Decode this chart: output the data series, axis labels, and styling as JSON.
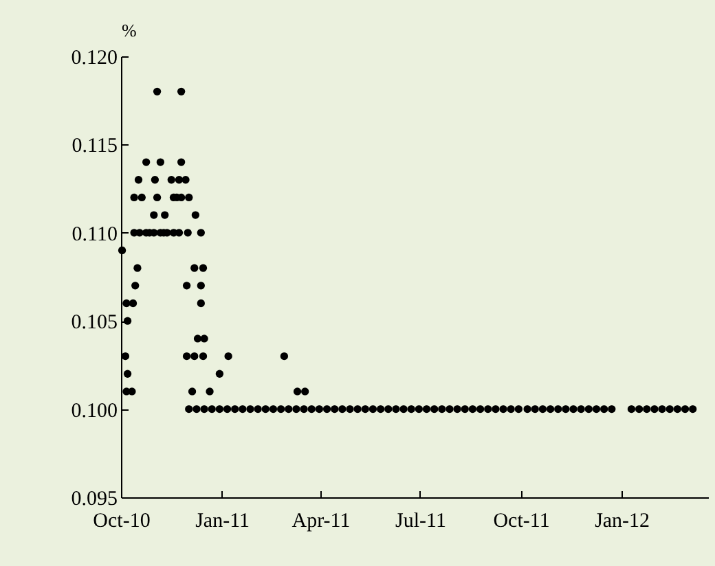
{
  "chart_data": {
    "type": "scatter",
    "ylabel": "%",
    "marker": "circle",
    "xlim": [
      "2010-10-01",
      "2012-03-20"
    ],
    "xticks": [
      {
        "value": "2010-10-01",
        "label": "Oct-10"
      },
      {
        "value": "2011-01-01",
        "label": "Jan-11"
      },
      {
        "value": "2011-04-01",
        "label": "Apr-11"
      },
      {
        "value": "2011-07-01",
        "label": "Jul-11"
      },
      {
        "value": "2011-10-01",
        "label": "Oct-11"
      },
      {
        "value": "2012-01-01",
        "label": "Jan-12"
      }
    ],
    "ylim": [
      0.095,
      0.12
    ],
    "yticks": [
      {
        "value": 0.095,
        "label": "0.095"
      },
      {
        "value": 0.1,
        "label": "0.100"
      },
      {
        "value": 0.105,
        "label": "0.105"
      },
      {
        "value": 0.11,
        "label": "0.110"
      },
      {
        "value": 0.115,
        "label": "0.115"
      },
      {
        "value": 0.12,
        "label": "0.120"
      }
    ],
    "series": [
      {
        "color": "#000000",
        "x": [
          "2010-10-02",
          "2010-10-05",
          "2010-10-06",
          "2010-10-06",
          "2010-10-07",
          "2010-10-07",
          "2010-10-11",
          "2010-10-12",
          "2010-10-13",
          "2010-10-13",
          "2010-10-14",
          "2010-10-16",
          "2010-10-17",
          "2010-10-18",
          "2010-10-20",
          "2010-10-24",
          "2010-10-24",
          "2010-10-27",
          "2010-10-31",
          "2010-10-31",
          "2010-11-01",
          "2010-11-03",
          "2010-11-03",
          "2010-11-06",
          "2010-11-06",
          "2010-11-09",
          "2010-11-10",
          "2010-11-12",
          "2010-11-16",
          "2010-11-18",
          "2010-11-18",
          "2010-11-21",
          "2010-11-23",
          "2010-11-23",
          "2010-11-25",
          "2010-11-25",
          "2010-11-25",
          "2010-11-29",
          "2010-11-30",
          "2010-11-30",
          "2010-12-01",
          "2010-12-02",
          "2010-12-02",
          "2010-12-05",
          "2010-12-07",
          "2010-12-07",
          "2010-12-08",
          "2010-12-09",
          "2010-12-10",
          "2010-12-13",
          "2010-12-13",
          "2010-12-13",
          "2010-12-15",
          "2010-12-15",
          "2010-12-16",
          "2010-12-16",
          "2010-12-21",
          "2010-12-23",
          "2010-12-30",
          "2010-12-30",
          "2011-01-06",
          "2011-01-07",
          "2011-01-13",
          "2011-01-20",
          "2011-01-27",
          "2011-02-03",
          "2011-02-10",
          "2011-02-17",
          "2011-02-24",
          "2011-02-27",
          "2011-03-03",
          "2011-03-10",
          "2011-03-11",
          "2011-03-17",
          "2011-03-18",
          "2011-03-24",
          "2011-03-31",
          "2011-04-07",
          "2011-04-14",
          "2011-04-21",
          "2011-04-28",
          "2011-05-05",
          "2011-05-12",
          "2011-05-19",
          "2011-05-26",
          "2011-06-02",
          "2011-06-09",
          "2011-06-16",
          "2011-06-23",
          "2011-06-30",
          "2011-07-07",
          "2011-07-14",
          "2011-07-21",
          "2011-07-28",
          "2011-08-04",
          "2011-08-11",
          "2011-08-18",
          "2011-08-25",
          "2011-09-01",
          "2011-09-08",
          "2011-09-15",
          "2011-09-22",
          "2011-09-29",
          "2011-10-07",
          "2011-10-14",
          "2011-10-21",
          "2011-10-28",
          "2011-11-04",
          "2011-11-11",
          "2011-11-18",
          "2011-11-25",
          "2011-12-02",
          "2011-12-09",
          "2011-12-16",
          "2011-12-23",
          "2012-01-10",
          "2012-01-17",
          "2012-01-24",
          "2012-01-31",
          "2012-02-07",
          "2012-02-14",
          "2012-02-21",
          "2012-02-28",
          "2012-03-06"
        ],
        "values": [
          0.109,
          0.103,
          0.101,
          0.106,
          0.102,
          0.105,
          0.101,
          0.106,
          0.11,
          0.112,
          0.107,
          0.108,
          0.113,
          0.11,
          0.112,
          0.11,
          0.114,
          0.11,
          0.11,
          0.111,
          0.113,
          0.112,
          0.118,
          0.11,
          0.114,
          0.11,
          0.111,
          0.11,
          0.113,
          0.11,
          0.112,
          0.112,
          0.11,
          0.113,
          0.112,
          0.114,
          0.118,
          0.113,
          0.107,
          0.103,
          0.11,
          0.112,
          0.1,
          0.101,
          0.108,
          0.103,
          0.111,
          0.1,
          0.104,
          0.11,
          0.107,
          0.106,
          0.108,
          0.103,
          0.104,
          0.1,
          0.101,
          0.1,
          0.102,
          0.1,
          0.1,
          0.103,
          0.1,
          0.1,
          0.1,
          0.1,
          0.1,
          0.1,
          0.1,
          0.103,
          0.1,
          0.1,
          0.101,
          0.1,
          0.101,
          0.1,
          0.1,
          0.1,
          0.1,
          0.1,
          0.1,
          0.1,
          0.1,
          0.1,
          0.1,
          0.1,
          0.1,
          0.1,
          0.1,
          0.1,
          0.1,
          0.1,
          0.1,
          0.1,
          0.1,
          0.1,
          0.1,
          0.1,
          0.1,
          0.1,
          0.1,
          0.1,
          0.1,
          0.1,
          0.1,
          0.1,
          0.1,
          0.1,
          0.1,
          0.1,
          0.1,
          0.1,
          0.1,
          0.1,
          0.1,
          0.1,
          0.1,
          0.1,
          0.1,
          0.1,
          0.1,
          0.1,
          0.1,
          0.1
        ]
      }
    ]
  }
}
